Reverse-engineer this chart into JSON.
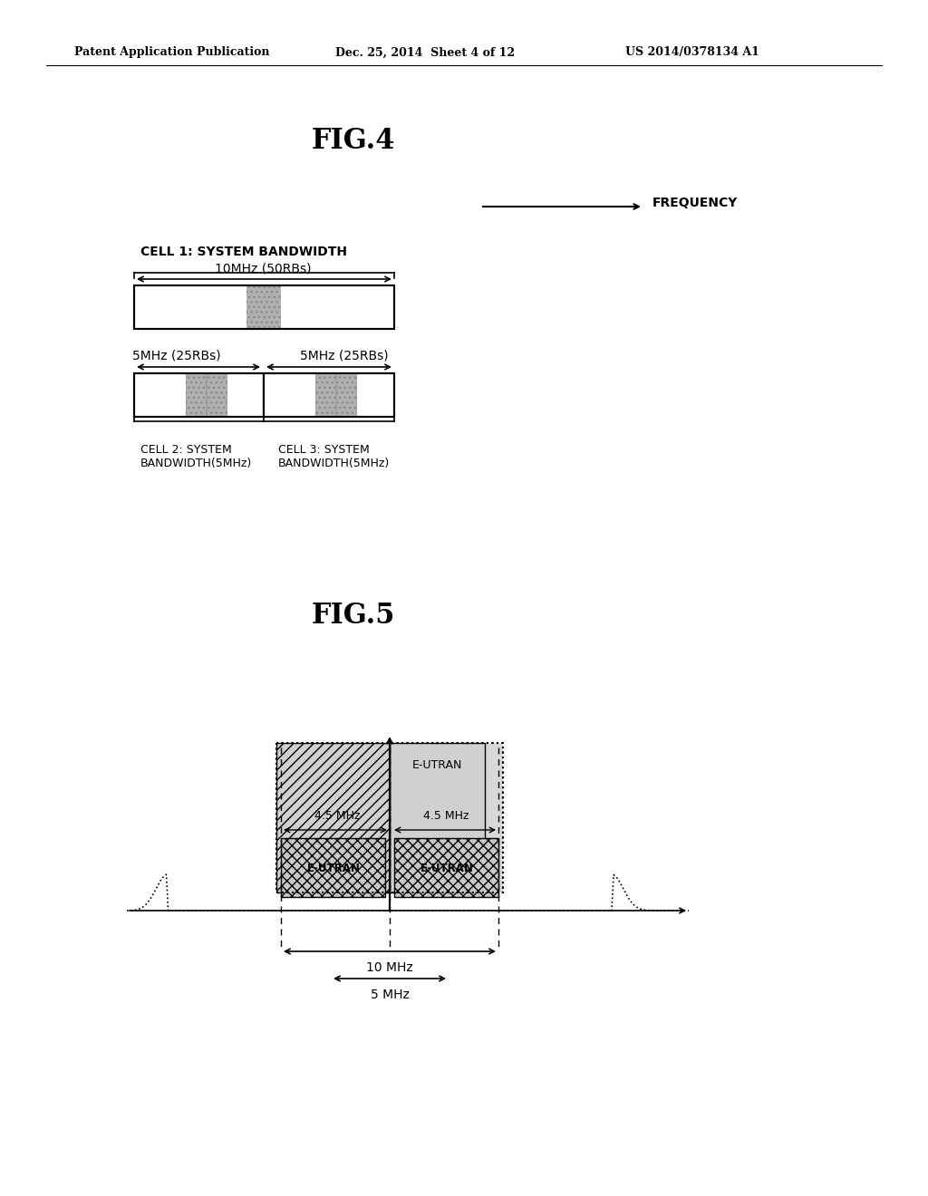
{
  "bg_color": "#ffffff",
  "header_left": "Patent Application Publication",
  "header_mid": "Dec. 25, 2014  Sheet 4 of 12",
  "header_right": "US 2014/0378134 A1",
  "fig4_title": "FIG.4",
  "fig5_title": "FIG.5",
  "frequency_label": "FREQUENCY",
  "cell1_label": "CELL 1: SYSTEM BANDWIDTH",
  "cell1_bw_label": "10MHz (50RBs)",
  "cell2_label": "CELL 2: SYSTEM\nBANDWIDTH(5MHz)",
  "cell3_label": "CELL 3: SYSTEM\nBANDWIDTH(5MHz)",
  "cell2_bw_label": "5MHz (25RBs)",
  "cell3_bw_label": "5MHz (25RBs)",
  "eutran_top": "E-UTRAN",
  "eutran_left": "E-UTRAN",
  "eutran_right": "E-UTRAN",
  "bw_45_left": "4.5 MHz",
  "bw_45_right": "4.5 MHz",
  "bw_10": "10 MHz",
  "bw_5": "5 MHz",
  "gray_light": "#c8c8c8",
  "gray_hatched": "#aaaaaa",
  "gray_dotted_fill": "#d0d0d0"
}
